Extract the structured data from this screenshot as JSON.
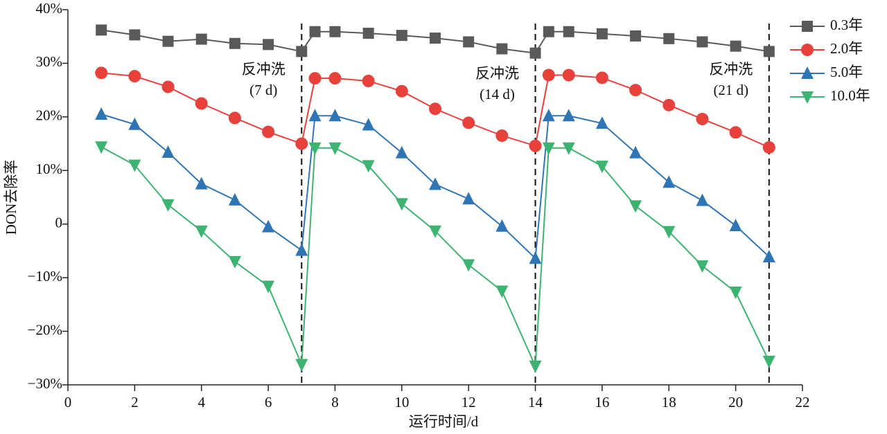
{
  "chart_data": {
    "type": "line",
    "x_label": "运行时间/d",
    "y_label": "DON去除率",
    "x": [
      1,
      2,
      3,
      4,
      5,
      6,
      7,
      7.4,
      8,
      9,
      10,
      11,
      12,
      13,
      14,
      14.4,
      15,
      16,
      17,
      18,
      19,
      20,
      21
    ],
    "series": [
      {
        "name": "0.3年",
        "color": "#595959",
        "marker": "square",
        "values": [
          36.2,
          35.3,
          34.1,
          34.5,
          33.7,
          33.5,
          32.2,
          35.9,
          35.9,
          35.6,
          35.2,
          34.7,
          34.0,
          32.7,
          31.9,
          35.9,
          35.9,
          35.5,
          35.1,
          34.6,
          34.0,
          33.2,
          32.2
        ]
      },
      {
        "name": "2.0年",
        "color": "#e8413c",
        "marker": "circle",
        "values": [
          28.2,
          27.6,
          25.6,
          22.5,
          19.8,
          17.2,
          15.0,
          27.2,
          27.2,
          26.7,
          24.8,
          21.5,
          18.9,
          16.5,
          14.6,
          27.8,
          27.8,
          27.3,
          25.0,
          22.2,
          19.6,
          17.1,
          14.3
        ]
      },
      {
        "name": "5.0年",
        "color": "#2e75b6",
        "marker": "triangle-up",
        "values": [
          20.5,
          18.6,
          13.4,
          7.5,
          4.5,
          -0.5,
          -4.9,
          20.2,
          20.2,
          18.5,
          13.3,
          7.4,
          4.7,
          -0.4,
          -6.4,
          20.2,
          20.2,
          18.8,
          13.3,
          7.8,
          4.4,
          -0.3,
          -6.1
        ]
      },
      {
        "name": "10.0年",
        "color": "#3cb371",
        "marker": "triangle-down",
        "values": [
          14.4,
          11.0,
          3.6,
          -1.3,
          -7.0,
          -11.6,
          -26.2,
          14.2,
          14.2,
          10.9,
          3.8,
          -1.3,
          -7.6,
          -12.5,
          -26.5,
          14.2,
          14.2,
          10.8,
          3.4,
          -1.4,
          -7.8,
          -12.7,
          -25.6
        ]
      }
    ],
    "vlines": [
      7,
      14,
      21
    ],
    "annotations": [
      [
        "反冲洗",
        "(7 d)"
      ],
      [
        "反冲洗",
        "(14 d)"
      ],
      [
        "反冲洗",
        "(21 d)"
      ]
    ],
    "xlim": [
      0,
      22
    ],
    "xticks": [
      0,
      2,
      4,
      6,
      8,
      10,
      12,
      14,
      16,
      18,
      20,
      22
    ],
    "ylim": [
      -30,
      40
    ],
    "yticks": [
      {
        "value": -30,
        "label": "−30%"
      },
      {
        "value": -20,
        "label": "−20%"
      },
      {
        "value": -10,
        "label": "−10%"
      },
      0,
      {
        "value": 10,
        "label": "10%"
      },
      {
        "value": 20,
        "label": "20%"
      },
      {
        "value": 30,
        "label": "30%"
      },
      {
        "value": 40,
        "label": "40%"
      }
    ]
  }
}
